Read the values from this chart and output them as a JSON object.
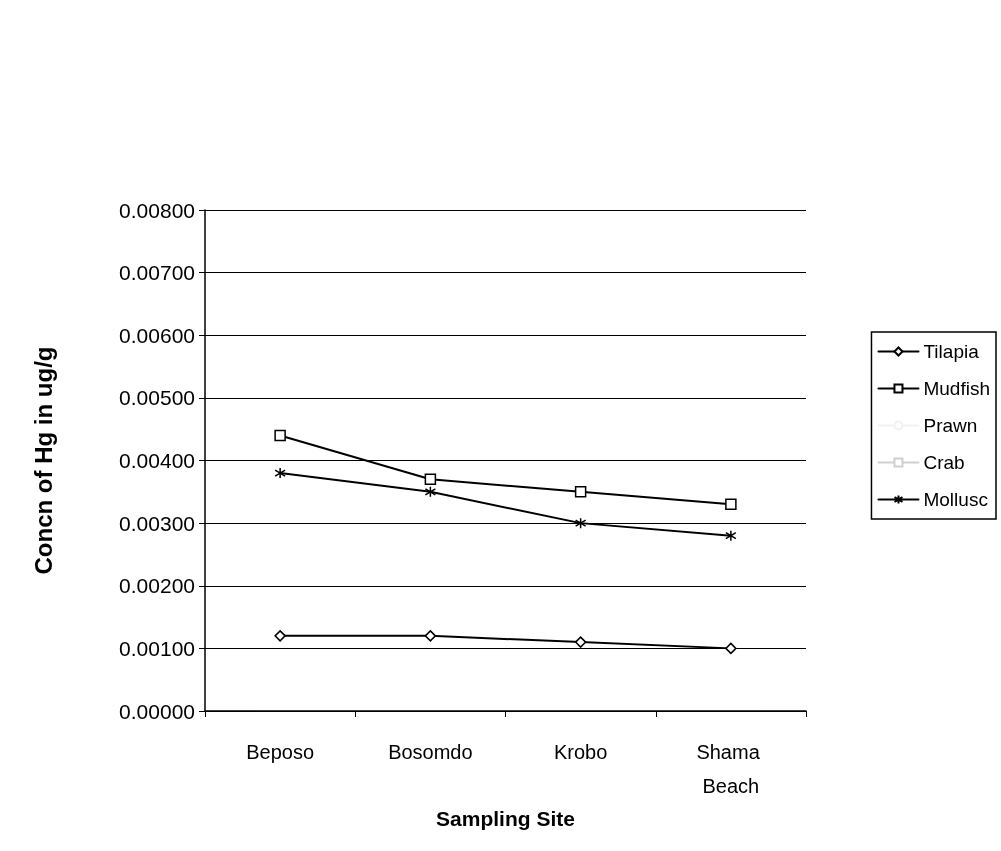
{
  "chart_data": {
    "type": "line",
    "xlabel": "Sampling Site",
    "ylabel": "Concn of Hg in ug/g",
    "categories": [
      "Beposo",
      "Bosomdo",
      "Krobo",
      "Shama Beach"
    ],
    "series": [
      {
        "name": "Tilapia",
        "color": "#000000",
        "marker": "diamond",
        "values": [
          0.0012,
          0.0012,
          0.0011,
          0.001
        ]
      },
      {
        "name": "Mudfish",
        "color": "#000000",
        "marker": "square",
        "values": [
          0.0044,
          0.0037,
          0.0035,
          0.0033
        ]
      },
      {
        "name": "Prawn",
        "color": "#f2f2f2",
        "marker": "none",
        "values": [
          null,
          null,
          null,
          null
        ]
      },
      {
        "name": "Crab",
        "color": "#d0d0d0",
        "marker": "square",
        "values": [
          null,
          null,
          null,
          null
        ]
      },
      {
        "name": "Mollusc",
        "color": "#000000",
        "marker": "cross",
        "values": [
          0.0038,
          0.0035,
          0.003,
          0.0028
        ]
      }
    ],
    "ylim": [
      0,
      0.008
    ],
    "yticks": [
      {
        "value": 0,
        "label": "0.00000"
      },
      {
        "value": 0.001,
        "label": "0.00100"
      },
      {
        "value": 0.002,
        "label": "0.00200"
      },
      {
        "value": 0.003,
        "label": "0.00300"
      },
      {
        "value": 0.004,
        "label": "0.00400"
      },
      {
        "value": 0.005,
        "label": "0.00500"
      },
      {
        "value": 0.006,
        "label": "0.00600"
      },
      {
        "value": 0.007,
        "label": "0.00700"
      },
      {
        "value": 0.008,
        "label": "0.00800"
      }
    ],
    "grid": "y",
    "legend": "right"
  }
}
